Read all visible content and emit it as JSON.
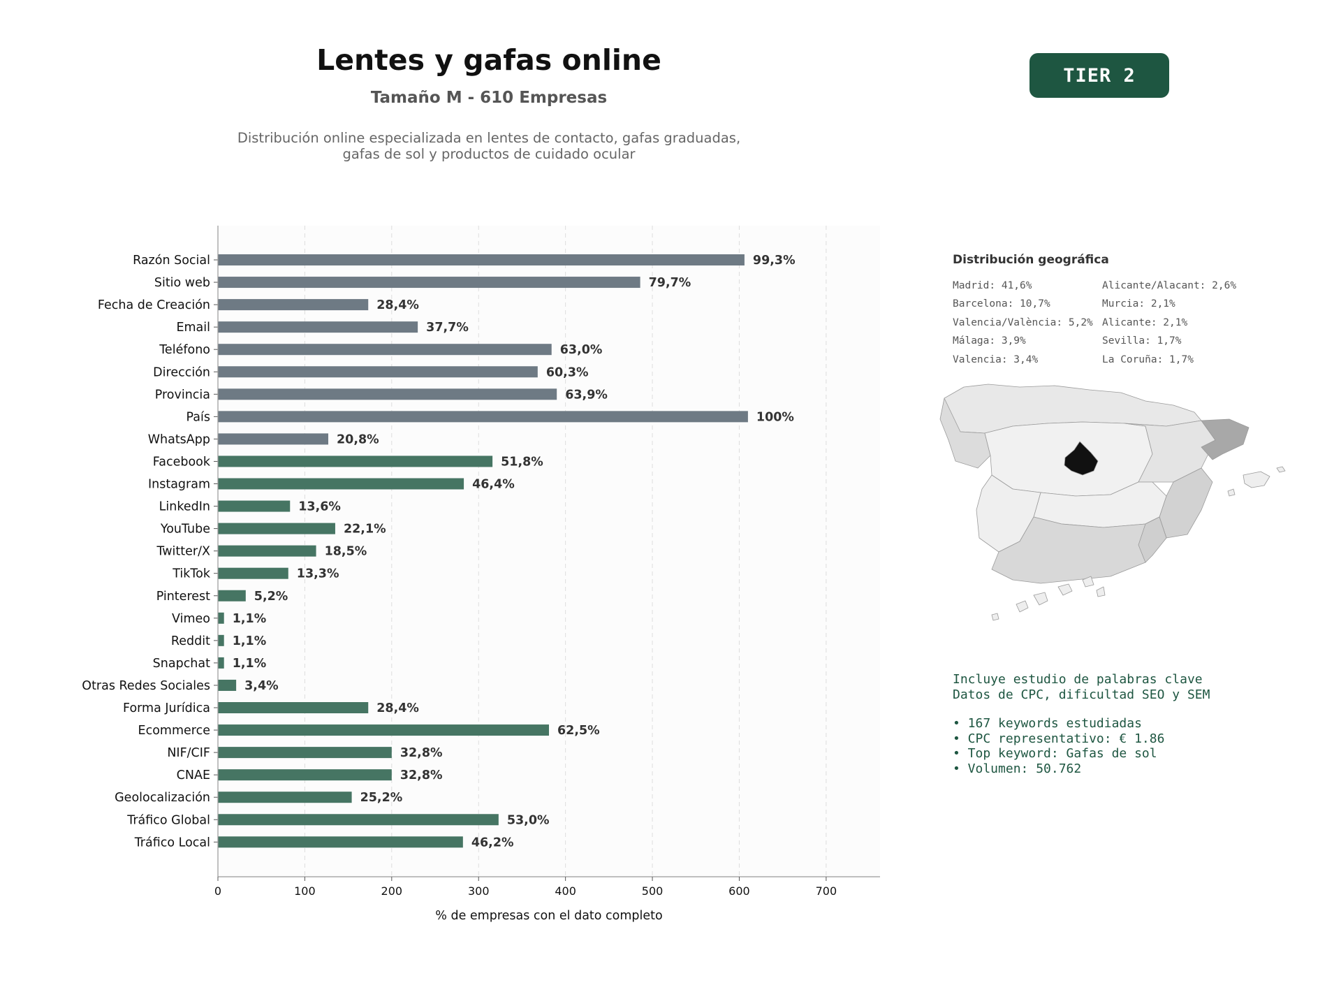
{
  "header": {
    "title": "Lentes y gafas online",
    "subtitle": "Tamaño M - 610 Empresas",
    "description": "Distribución online especializada en lentes de contacto, gafas graduadas, gafas de sol y productos de cuidado ocular",
    "tier_label": "TIER 2"
  },
  "colors": {
    "gray_bar": "#6e7a84",
    "green_bar": "#467563",
    "accent": "#1e5641"
  },
  "chart_data": {
    "type": "bar",
    "orientation": "horizontal",
    "xlabel": "% de empresas con el dato completo",
    "xlim": [
      0,
      762
    ],
    "xticks": [
      0,
      100,
      200,
      300,
      400,
      500,
      600,
      700
    ],
    "grid": "vertical dashed",
    "categories": [
      "Razón Social",
      "Sitio web",
      "Fecha de Creación",
      "Email",
      "Teléfono",
      "Dirección",
      "Provincia",
      "País",
      "WhatsApp",
      "Facebook",
      "Instagram",
      "LinkedIn",
      "YouTube",
      "Twitter/X",
      "TikTok",
      "Pinterest",
      "Vimeo",
      "Reddit",
      "Snapchat",
      "Otras Redes Sociales",
      "Forma Jurídica",
      "Ecommerce",
      "NIF/CIF",
      "CNAE",
      "Geolocalización",
      "Tráfico Global",
      "Tráfico Local"
    ],
    "values": [
      606,
      486,
      173,
      230,
      384,
      368,
      390,
      610,
      127,
      316,
      283,
      83,
      135,
      113,
      81,
      32,
      7,
      7,
      7,
      21,
      173,
      381,
      200,
      200,
      154,
      323,
      282
    ],
    "labels": [
      "99,3%",
      "79,7%",
      "28,4%",
      "37,7%",
      "63,0%",
      "60,3%",
      "63,9%",
      "100%",
      "20,8%",
      "51,8%",
      "46,4%",
      "13,6%",
      "22,1%",
      "18,5%",
      "13,3%",
      "5,2%",
      "1,1%",
      "1,1%",
      "1,1%",
      "3,4%",
      "28,4%",
      "62,5%",
      "32,8%",
      "32,8%",
      "25,2%",
      "53,0%",
      "46,2%"
    ],
    "groups": [
      "gray",
      "gray",
      "gray",
      "gray",
      "gray",
      "gray",
      "gray",
      "gray",
      "gray",
      "green",
      "green",
      "green",
      "green",
      "green",
      "green",
      "green",
      "green",
      "green",
      "green",
      "green",
      "green",
      "green",
      "green",
      "green",
      "green",
      "green",
      "green"
    ]
  },
  "geo": {
    "title": "Distribución geográfica",
    "items": [
      "Madrid: 41,6%",
      "Alicante/Alacant: 2,6%",
      "Barcelona: 10,7%",
      "Murcia: 2,1%",
      "Valencia/València: 5,2%",
      "Alicante: 2,1%",
      "Málaga: 3,9%",
      "Sevilla: 1,7%",
      "Valencia: 3,4%",
      "La Coruña: 1,7%"
    ]
  },
  "keywords": {
    "line1": "Incluye estudio de palabras clave",
    "line2": "Datos de CPC, dificultad SEO y SEM",
    "bullets": [
      "• 167 keywords estudiadas",
      "• CPC representativo: € 1.86",
      "• Top keyword: Gafas de sol",
      "• Volumen: 50.762"
    ]
  }
}
